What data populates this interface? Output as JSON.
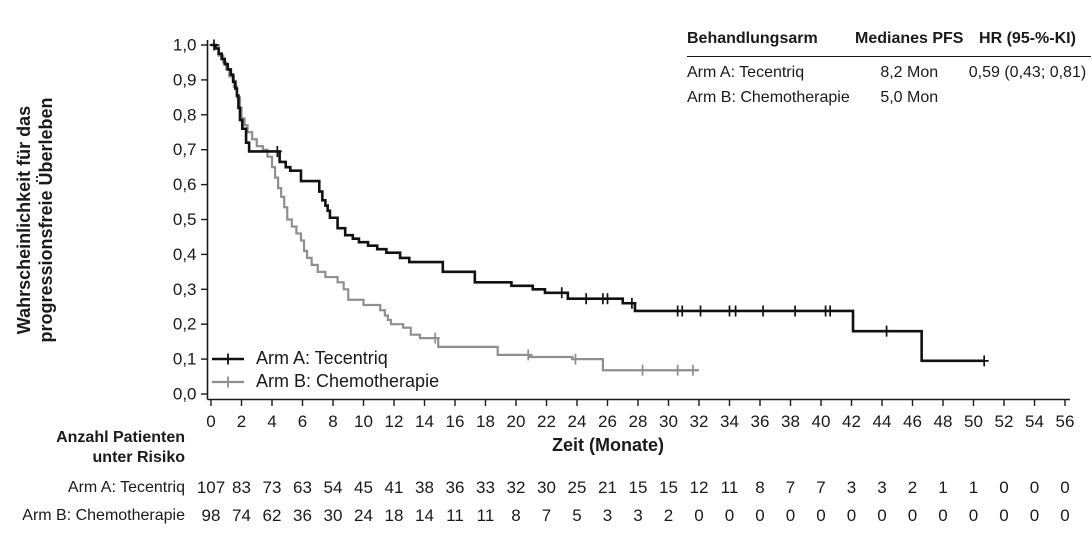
{
  "chart_data": {
    "type": "line",
    "subtype": "kaplan-meier-step",
    "title": "",
    "xlabel": "Zeit (Monate)",
    "ylabel_lines": [
      "Wahrscheinlichkeit für das",
      "progressionsfreie Überleben"
    ],
    "xlim": [
      0,
      56
    ],
    "ylim": [
      0.0,
      1.0
    ],
    "grid": false,
    "legend_position": "lower-left-inside",
    "axis_color": "#1a1a1a",
    "x_ticks": [
      0,
      2,
      4,
      6,
      8,
      10,
      12,
      14,
      16,
      18,
      20,
      22,
      24,
      26,
      28,
      30,
      32,
      34,
      36,
      38,
      40,
      42,
      44,
      46,
      48,
      50,
      52,
      54,
      56
    ],
    "y_tick_labels": [
      "0,0",
      "0,1",
      "0,2",
      "0,3",
      "0,4",
      "0,5",
      "0,6",
      "0,7",
      "0,8",
      "0,9",
      "1,0"
    ],
    "series": [
      {
        "name": "Arm A: Tecentriq",
        "color": "#111111",
        "line_width": 2.6,
        "steps": [
          [
            0,
            1.0
          ],
          [
            0.3,
            0.99
          ],
          [
            0.5,
            0.975
          ],
          [
            0.7,
            0.96
          ],
          [
            0.9,
            0.945
          ],
          [
            1.1,
            0.93
          ],
          [
            1.3,
            0.915
          ],
          [
            1.45,
            0.895
          ],
          [
            1.6,
            0.875
          ],
          [
            1.7,
            0.855
          ],
          [
            1.8,
            0.82
          ],
          [
            1.9,
            0.785
          ],
          [
            2.05,
            0.76
          ],
          [
            2.3,
            0.72
          ],
          [
            2.5,
            0.695
          ],
          [
            4.5,
            0.665
          ],
          [
            4.9,
            0.65
          ],
          [
            5.2,
            0.64
          ],
          [
            5.9,
            0.61
          ],
          [
            7.1,
            0.58
          ],
          [
            7.3,
            0.555
          ],
          [
            7.5,
            0.54
          ],
          [
            7.65,
            0.525
          ],
          [
            7.8,
            0.505
          ],
          [
            8.3,
            0.475
          ],
          [
            8.8,
            0.455
          ],
          [
            9.3,
            0.445
          ],
          [
            9.7,
            0.435
          ],
          [
            10.3,
            0.425
          ],
          [
            10.9,
            0.415
          ],
          [
            11.5,
            0.405
          ],
          [
            12.4,
            0.39
          ],
          [
            13.0,
            0.378
          ],
          [
            15.2,
            0.35
          ],
          [
            17.3,
            0.32
          ],
          [
            19.7,
            0.31
          ],
          [
            21.1,
            0.3
          ],
          [
            21.9,
            0.29
          ],
          [
            23.4,
            0.273
          ],
          [
            27.0,
            0.26
          ],
          [
            27.8,
            0.238
          ],
          [
            42.1,
            0.18
          ],
          [
            46.6,
            0.095
          ]
        ],
        "end_time": 50.7,
        "censor_marks": [
          [
            0.2,
            1.0
          ],
          [
            4.35,
            0.695
          ],
          [
            23.0,
            0.29
          ],
          [
            24.6,
            0.273
          ],
          [
            25.7,
            0.273
          ],
          [
            26.0,
            0.273
          ],
          [
            27.6,
            0.26
          ],
          [
            30.6,
            0.238
          ],
          [
            30.9,
            0.238
          ],
          [
            32.1,
            0.238
          ],
          [
            34.0,
            0.238
          ],
          [
            34.4,
            0.238
          ],
          [
            36.2,
            0.238
          ],
          [
            38.3,
            0.238
          ],
          [
            40.3,
            0.238
          ],
          [
            40.6,
            0.238
          ],
          [
            44.3,
            0.18
          ],
          [
            50.7,
            0.095
          ]
        ]
      },
      {
        "name": "Arm B: Chemotherapie",
        "color": "#8f8f8f",
        "line_width": 2.2,
        "steps": [
          [
            0,
            1.0
          ],
          [
            0.5,
            0.97
          ],
          [
            0.8,
            0.95
          ],
          [
            1.0,
            0.93
          ],
          [
            1.2,
            0.91
          ],
          [
            1.5,
            0.88
          ],
          [
            1.7,
            0.85
          ],
          [
            1.9,
            0.82
          ],
          [
            2.0,
            0.79
          ],
          [
            2.2,
            0.77
          ],
          [
            2.4,
            0.75
          ],
          [
            2.7,
            0.73
          ],
          [
            3.0,
            0.71
          ],
          [
            3.4,
            0.7
          ],
          [
            3.7,
            0.68
          ],
          [
            4.0,
            0.65
          ],
          [
            4.2,
            0.62
          ],
          [
            4.4,
            0.59
          ],
          [
            4.6,
            0.565
          ],
          [
            4.8,
            0.535
          ],
          [
            5.0,
            0.5
          ],
          [
            5.3,
            0.48
          ],
          [
            5.6,
            0.46
          ],
          [
            5.9,
            0.44
          ],
          [
            6.1,
            0.41
          ],
          [
            6.3,
            0.39
          ],
          [
            6.6,
            0.37
          ],
          [
            7.0,
            0.35
          ],
          [
            7.5,
            0.335
          ],
          [
            8.3,
            0.32
          ],
          [
            8.7,
            0.3
          ],
          [
            9.0,
            0.27
          ],
          [
            10.0,
            0.255
          ],
          [
            11.1,
            0.24
          ],
          [
            11.4,
            0.225
          ],
          [
            11.6,
            0.212
          ],
          [
            11.8,
            0.2
          ],
          [
            12.6,
            0.19
          ],
          [
            13.1,
            0.17
          ],
          [
            13.7,
            0.16
          ],
          [
            14.9,
            0.135
          ],
          [
            18.8,
            0.112
          ],
          [
            20.9,
            0.106
          ],
          [
            23.7,
            0.1
          ],
          [
            25.7,
            0.068
          ]
        ],
        "end_time": 32.0,
        "censor_marks": [
          [
            14.7,
            0.16
          ],
          [
            20.8,
            0.112
          ],
          [
            23.9,
            0.1
          ],
          [
            28.3,
            0.068
          ],
          [
            30.6,
            0.068
          ],
          [
            31.6,
            0.068
          ]
        ]
      }
    ]
  },
  "stats_table": {
    "headers": [
      "Behandlungsarm",
      "Medianes PFS",
      "HR (95-%-KI)"
    ],
    "rows": [
      [
        "Arm A: Tecentriq",
        "8,2 Mon",
        "0,59 (0,43; 0,81)"
      ],
      [
        "Arm B: Chemotherapie",
        "5,0 Mon",
        ""
      ]
    ]
  },
  "legend": {
    "items": [
      {
        "label": "Arm A: Tecentriq",
        "color": "#111111"
      },
      {
        "label": "Arm B: Chemotherapie",
        "color": "#8f8f8f"
      }
    ]
  },
  "risk_table": {
    "title_line1": "Anzahl Patienten",
    "title_line2": "unter Risiko",
    "rows": [
      {
        "label": "Arm A: Tecentriq",
        "values": [
          107,
          83,
          73,
          63,
          54,
          45,
          41,
          38,
          36,
          33,
          32,
          30,
          25,
          21,
          15,
          15,
          12,
          11,
          8,
          7,
          7,
          3,
          3,
          2,
          1,
          1,
          0,
          0,
          0
        ]
      },
      {
        "label": "Arm B: Chemotherapie",
        "values": [
          98,
          74,
          62,
          36,
          30,
          24,
          18,
          14,
          11,
          11,
          8,
          7,
          5,
          3,
          3,
          2,
          0,
          0,
          0,
          0,
          0,
          0,
          0,
          0,
          0,
          0,
          0,
          0,
          0
        ]
      }
    ]
  }
}
